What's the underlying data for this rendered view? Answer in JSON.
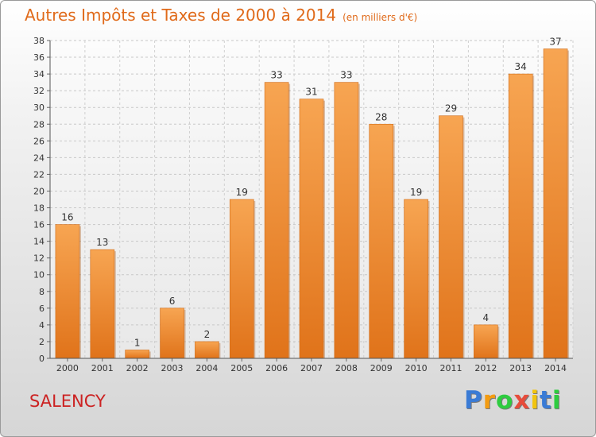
{
  "title": "Autres Impôts et Taxes de 2000 à 2014",
  "title_unit": "(en milliers d'€)",
  "commune": "SALENCY",
  "logo": {
    "letters": [
      "P",
      "r",
      "o",
      "x",
      "i",
      "t",
      "i"
    ],
    "colors": [
      "#3a7bd5",
      "#f39c12",
      "#2ecc40",
      "#e74c3c",
      "#f1c40f",
      "#3a7bd5",
      "#2ecc40"
    ]
  },
  "chart_data": {
    "type": "bar",
    "categories": [
      "2000",
      "2001",
      "2002",
      "2003",
      "2004",
      "2005",
      "2006",
      "2007",
      "2008",
      "2009",
      "2010",
      "2011",
      "2012",
      "2013",
      "2014"
    ],
    "values": [
      16,
      13,
      1,
      6,
      2,
      19,
      33,
      31,
      33,
      28,
      19,
      29,
      4,
      34,
      37
    ],
    "data_labels": [
      "16",
      "13",
      "1",
      "6",
      "2",
      "19",
      "33",
      "31",
      "33",
      "28",
      "19",
      "29",
      "4",
      "34",
      "37"
    ],
    "ylim": [
      0,
      38
    ],
    "yticks": [
      "0",
      "2",
      "4",
      "6",
      "8",
      "10",
      "12",
      "14",
      "16",
      "18",
      "20",
      "22",
      "24",
      "26",
      "28",
      "30",
      "32",
      "34",
      "36",
      "38"
    ],
    "grid": true,
    "bar_color": "#f0892e"
  }
}
